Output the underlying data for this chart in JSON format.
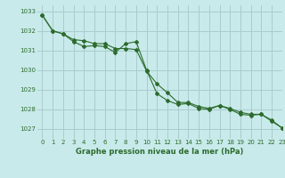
{
  "title": "Graphe pression niveau de la mer (hPa)",
  "bg_color": "#c8eaea",
  "grid_color": "#aacccc",
  "line_color": "#2d6b2d",
  "xlim": [
    -0.5,
    23
  ],
  "ylim": [
    1026.5,
    1033.3
  ],
  "yticks": [
    1027,
    1028,
    1029,
    1030,
    1031,
    1032,
    1033
  ],
  "xticks": [
    0,
    1,
    2,
    3,
    4,
    5,
    6,
    7,
    8,
    9,
    10,
    11,
    12,
    13,
    14,
    15,
    16,
    17,
    18,
    19,
    20,
    21,
    22,
    23
  ],
  "series1_x": [
    0,
    1,
    2,
    3,
    4,
    5,
    6,
    7,
    8,
    9,
    10,
    11,
    12,
    13,
    14,
    15,
    16,
    17,
    18,
    19,
    20,
    21,
    22,
    23
  ],
  "series1_y": [
    1032.8,
    1032.0,
    1031.85,
    1031.55,
    1031.5,
    1031.35,
    1031.35,
    1031.1,
    1031.1,
    1031.05,
    1029.95,
    1029.3,
    1028.85,
    1028.35,
    1028.35,
    1028.15,
    1028.05,
    1028.2,
    1028.05,
    1027.85,
    1027.75,
    1027.75,
    1027.45,
    1027.05
  ],
  "series2_x": [
    0,
    1,
    2,
    3,
    4,
    5,
    6,
    7,
    8,
    9,
    10,
    11,
    12,
    13,
    14,
    15,
    16,
    17,
    18,
    19,
    20,
    21,
    22,
    23
  ],
  "series2_y": [
    1032.8,
    1032.0,
    1031.85,
    1031.45,
    1031.2,
    1031.25,
    1031.2,
    1030.9,
    1031.35,
    1031.45,
    1030.0,
    1028.8,
    1028.45,
    1028.25,
    1028.3,
    1028.05,
    1028.0,
    1028.2,
    1028.0,
    1027.75,
    1027.7,
    1027.75,
    1027.4,
    1027.05
  ],
  "tick_fontsize": 5,
  "xlabel_fontsize": 6
}
